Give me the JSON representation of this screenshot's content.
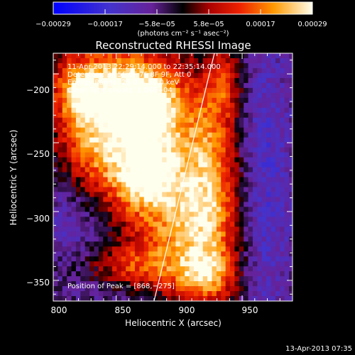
{
  "chart_data": {
    "type": "heatmap",
    "title": "Reconstructed RHESSI Image",
    "xlabel": "Heliocentric X (arcsec)",
    "ylabel": "Heliocentric Y (arcsec)",
    "xlim": [
      800,
      990
    ],
    "ylim": [
      -365,
      -185
    ],
    "xticks": [
      800,
      850,
      900,
      950
    ],
    "yticks": [
      -200,
      -250,
      -300,
      -350
    ],
    "x_tick_labels": [
      "800",
      "850",
      "900",
      "950"
    ],
    "y_tick_labels": [
      "−200",
      "−250",
      "−300",
      "−350"
    ],
    "colorbar": {
      "range": [
        -0.00029,
        0.00029
      ],
      "tick_labels": [
        "−0.00029",
        "−0.00017",
        "−5.8e−05",
        "5.8e−05",
        "0.00017",
        "0.00029"
      ],
      "unit": "(photons cm⁻² s⁻¹ asec⁻²)"
    },
    "peak": [
      868,
      -275
    ],
    "annotations": {
      "time_range": "11-Apr-2013 22:29:14.000 to 22:35:14.000",
      "detectors": "Detectors: 3F 5F 6F 7F 8F 9F, Att 0",
      "energy": "Energy Range: 25.0 − 50.0 keV",
      "clean": "Clean    Total counts: 1.06E+04",
      "peak_text": "Position of Peak = [868,−275]"
    },
    "limb_curve": [
      [
        928,
        -185
      ],
      [
        920,
        -215
      ],
      [
        912,
        -245
      ],
      [
        904,
        -275
      ],
      [
        896,
        -305
      ],
      [
        888,
        -335
      ],
      [
        880,
        -365
      ]
    ],
    "blobs": [
      {
        "x": 872,
        "y": -245,
        "sx": 28,
        "sy": 30,
        "a": 1.0
      },
      {
        "x": 868,
        "y": -276,
        "sx": 18,
        "sy": 16,
        "a": 0.45
      },
      {
        "x": 875,
        "y": -218,
        "sx": 14,
        "sy": 12,
        "a": 0.35
      },
      {
        "x": 900,
        "y": -310,
        "sx": 28,
        "sy": 30,
        "a": 0.7
      },
      {
        "x": 852,
        "y": -205,
        "sx": 30,
        "sy": 22,
        "a": 0.7
      },
      {
        "x": 825,
        "y": -245,
        "sx": 18,
        "sy": 35,
        "a": 0.55
      },
      {
        "x": 925,
        "y": -270,
        "sx": 16,
        "sy": 50,
        "a": 0.6
      },
      {
        "x": 920,
        "y": -345,
        "sx": 18,
        "sy": 14,
        "a": 0.55
      },
      {
        "x": 935,
        "y": -205,
        "sx": 10,
        "sy": 18,
        "a": 0.4
      },
      {
        "x": 860,
        "y": -340,
        "sx": 25,
        "sy": 12,
        "a": 0.45
      },
      {
        "x": 815,
        "y": -210,
        "sx": 12,
        "sy": 14,
        "a": 0.4
      }
    ],
    "dips": [
      {
        "x": 815,
        "y": -300,
        "sx": 18,
        "sy": 25,
        "a": 0.55
      },
      {
        "x": 965,
        "y": -280,
        "sx": 18,
        "sy": 90,
        "a": 0.6
      },
      {
        "x": 850,
        "y": -355,
        "sx": 25,
        "sy": 10,
        "a": 0.3
      }
    ],
    "footer_time": "13-Apr-2013 07:35"
  }
}
